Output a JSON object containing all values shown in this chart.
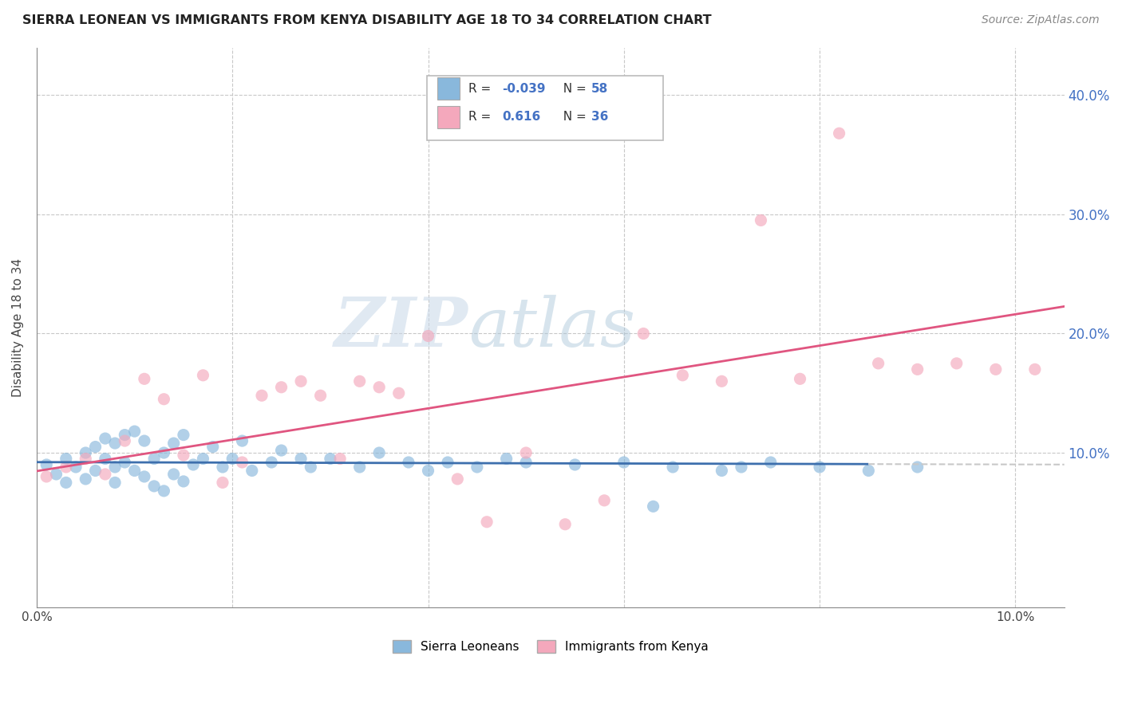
{
  "title": "SIERRA LEONEAN VS IMMIGRANTS FROM KENYA DISABILITY AGE 18 TO 34 CORRELATION CHART",
  "source": "Source: ZipAtlas.com",
  "ylabel": "Disability Age 18 to 34",
  "xlim": [
    0.0,
    0.105
  ],
  "ylim": [
    -0.03,
    0.44
  ],
  "blue_color": "#89b8dc",
  "pink_color": "#f4a8bc",
  "blue_line_color": "#3d6fad",
  "pink_line_color": "#e05580",
  "grid_color": "#c8c8c8",
  "watermark_zip": "ZIP",
  "watermark_atlas": "atlas",
  "blue_r": "-0.039",
  "blue_n": "58",
  "pink_r": "0.616",
  "pink_n": "36",
  "blue_scatter_x": [
    0.001,
    0.002,
    0.003,
    0.003,
    0.004,
    0.005,
    0.005,
    0.006,
    0.006,
    0.007,
    0.007,
    0.008,
    0.008,
    0.008,
    0.009,
    0.009,
    0.01,
    0.01,
    0.011,
    0.011,
    0.012,
    0.012,
    0.013,
    0.013,
    0.014,
    0.014,
    0.015,
    0.015,
    0.016,
    0.017,
    0.018,
    0.019,
    0.02,
    0.021,
    0.022,
    0.024,
    0.025,
    0.027,
    0.028,
    0.03,
    0.033,
    0.035,
    0.038,
    0.04,
    0.042,
    0.045,
    0.048,
    0.05,
    0.055,
    0.06,
    0.063,
    0.065,
    0.07,
    0.072,
    0.075,
    0.08,
    0.085,
    0.09
  ],
  "blue_scatter_y": [
    0.09,
    0.082,
    0.095,
    0.075,
    0.088,
    0.1,
    0.078,
    0.105,
    0.085,
    0.112,
    0.095,
    0.108,
    0.088,
    0.075,
    0.115,
    0.092,
    0.118,
    0.085,
    0.11,
    0.08,
    0.095,
    0.072,
    0.1,
    0.068,
    0.108,
    0.082,
    0.115,
    0.076,
    0.09,
    0.095,
    0.105,
    0.088,
    0.095,
    0.11,
    0.085,
    0.092,
    0.102,
    0.095,
    0.088,
    0.095,
    0.088,
    0.1,
    0.092,
    0.085,
    0.092,
    0.088,
    0.095,
    0.092,
    0.09,
    0.092,
    0.055,
    0.088,
    0.085,
    0.088,
    0.092,
    0.088,
    0.085,
    0.088
  ],
  "pink_scatter_x": [
    0.001,
    0.003,
    0.005,
    0.007,
    0.009,
    0.011,
    0.013,
    0.015,
    0.017,
    0.019,
    0.021,
    0.023,
    0.025,
    0.027,
    0.029,
    0.031,
    0.033,
    0.035,
    0.037,
    0.04,
    0.043,
    0.046,
    0.05,
    0.054,
    0.058,
    0.062,
    0.066,
    0.07,
    0.074,
    0.078,
    0.082,
    0.086,
    0.09,
    0.094,
    0.098,
    0.102
  ],
  "pink_scatter_y": [
    0.08,
    0.088,
    0.095,
    0.082,
    0.11,
    0.162,
    0.145,
    0.098,
    0.165,
    0.075,
    0.092,
    0.148,
    0.155,
    0.16,
    0.148,
    0.095,
    0.16,
    0.155,
    0.15,
    0.198,
    0.078,
    0.042,
    0.1,
    0.04,
    0.06,
    0.2,
    0.165,
    0.16,
    0.295,
    0.162,
    0.368,
    0.175,
    0.17,
    0.175,
    0.17,
    0.17
  ]
}
